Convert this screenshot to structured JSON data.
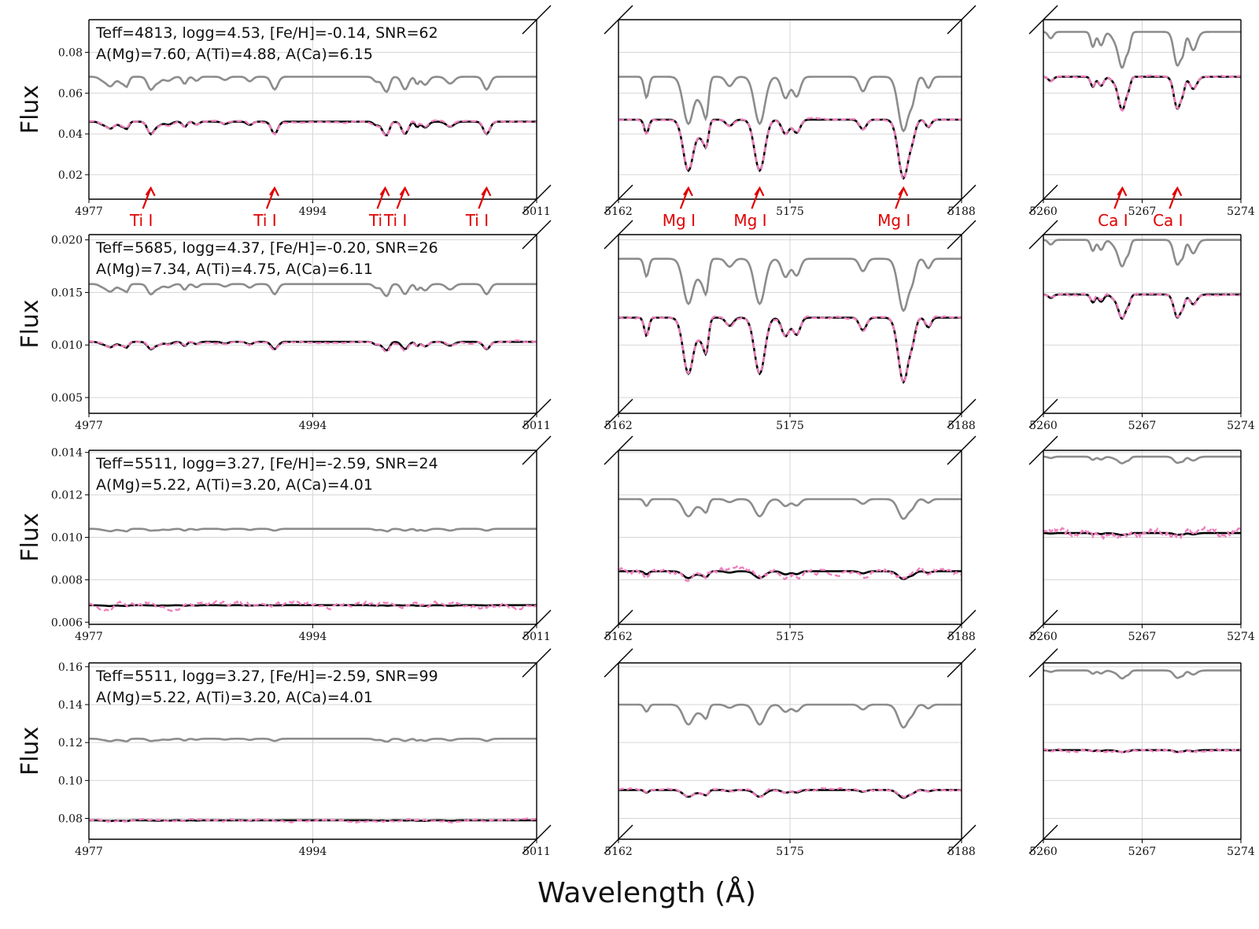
{
  "chart_data": {
    "type": "line",
    "xlabel": "Wavelength (Å)",
    "ylabel": "Flux",
    "colors": {
      "grey_line": "#8c8c8c",
      "black_line": "#000000",
      "pink_dashed": "#f07fbf",
      "annotation": "#e00000",
      "grid": "#d6d6d6"
    },
    "segments": [
      {
        "xlim": [
          4977,
          5011
        ],
        "ticks": [
          4977,
          4994,
          5011
        ]
      },
      {
        "xlim": [
          5162,
          5188
        ],
        "ticks": [
          5162,
          5175,
          5188
        ]
      },
      {
        "xlim": [
          5260,
          5274
        ],
        "ticks": [
          5260,
          5267,
          5274
        ]
      }
    ],
    "lines": {
      "Ti": [
        4981.7,
        4991.1,
        4999.5,
        5001.0,
        5007.2
      ],
      "Mg": [
        5167.3,
        5172.7,
        5183.6
      ],
      "Ca": [
        5265.6,
        5269.5
      ]
    },
    "panels": [
      {
        "annotation_line1": "Teff=4813, logg=4.53, [Fe/H]=-0.14, SNR=62",
        "annotation_line2": "A(Mg)=7.60, A(Ti)=4.88, A(Ca)=6.15",
        "ylim": [
          0.008,
          0.096
        ],
        "yticks": [
          0.02,
          0.04,
          0.06,
          0.08
        ],
        "ytick_labels": [
          "0.02",
          "0.04",
          "0.06",
          "0.08"
        ],
        "grey": {
          "cont": [
            0.068,
            0.068,
            0.09
          ],
          "depth": 0.018,
          "wide_scale": [
            0.55,
            1.6,
            1.3
          ],
          "lines": [
            0.9,
            0.8,
            0.7
          ]
        },
        "black": {
          "cont": [
            0.046,
            0.047,
            0.068
          ],
          "depth": 0.012,
          "wide_scale": [
            0.6,
            1.6,
            1.3
          ],
          "lines": [
            1.2,
            1.3,
            1.0
          ]
        },
        "pink_noise": 0.0005,
        "line_labels": [
          {
            "text": "Ti I",
            "seg": 0,
            "x": 4981.7,
            "tip_y": 0.0135
          },
          {
            "text": "Ti I",
            "seg": 0,
            "x": 4991.1,
            "tip_y": 0.0135
          },
          {
            "text": "Ti",
            "seg": 0,
            "x": 4999.5,
            "tip_y": 0.0135
          },
          {
            "text": "Ti I",
            "seg": 0,
            "x": 5001.0,
            "tip_y": 0.0135
          },
          {
            "text": "Ti I",
            "seg": 0,
            "x": 5007.2,
            "tip_y": 0.0135
          },
          {
            "text": "Mg I",
            "seg": 1,
            "x": 5167.3,
            "tip_y": 0.0135
          },
          {
            "text": "Mg I",
            "seg": 1,
            "x": 5172.7,
            "tip_y": 0.0135
          },
          {
            "text": "Mg I",
            "seg": 1,
            "x": 5183.6,
            "tip_y": 0.0135
          },
          {
            "text": "Ca I",
            "seg": 2,
            "x": 5265.6,
            "tip_y": 0.0135
          },
          {
            "text": "Ca I",
            "seg": 2,
            "x": 5269.5,
            "tip_y": 0.0135
          }
        ]
      },
      {
        "annotation_line1": "Teff=5685, logg=4.37, [Fe/H]=-0.20, SNR=26",
        "annotation_line2": "A(Mg)=7.34, A(Ti)=4.75, A(Ca)=6.11",
        "ylim": [
          0.0035,
          0.0205
        ],
        "yticks": [
          0.005,
          0.01,
          0.015,
          0.02
        ],
        "ytick_labels": [
          "0.005",
          "0.010",
          "0.015",
          "0.020"
        ],
        "grey": {
          "cont": [
            0.0158,
            0.0182,
            0.02
          ],
          "depth": 0.0028,
          "wide_scale": [
            0.55,
            1.7,
            1.2
          ],
          "lines": [
            0.9,
            0.9,
            0.7
          ]
        },
        "black": {
          "cont": [
            0.0103,
            0.0126,
            0.0148
          ],
          "depth": 0.0022,
          "wide_scale": [
            0.5,
            2.2,
            1.1
          ],
          "lines": [
            0.9,
            1.1,
            0.9
          ]
        },
        "pink_noise": 0.00012
      },
      {
        "annotation_line1": "Teff=5511, logg=3.27, [Fe/H]=-2.59, SNR=24",
        "annotation_line2": "A(Mg)=5.22, A(Ti)=3.20, A(Ca)=4.01",
        "ylim": [
          0.0059,
          0.0141
        ],
        "yticks": [
          0.006,
          0.008,
          0.01,
          0.012,
          0.014
        ],
        "ytick_labels": [
          "0.006",
          "0.008",
          "0.010",
          "0.012",
          "0.014"
        ],
        "grey": {
          "cont": [
            0.0104,
            0.0118,
            0.0138
          ],
          "depth": 0.0006,
          "wide_scale": [
            0.4,
            1.5,
            0.8
          ],
          "lines": [
            0.5,
            0.9,
            0.6
          ]
        },
        "black": {
          "cont": [
            0.0068,
            0.0084,
            0.0102
          ],
          "depth": 0.0004,
          "wide_scale": [
            0.2,
            1.0,
            0.4
          ],
          "lines": [
            0.2,
            0.8,
            0.5
          ]
        },
        "pink_noise": 0.00018
      },
      {
        "annotation_line1": "Teff=5511, logg=3.27, [Fe/H]=-2.59, SNR=99",
        "annotation_line2": "A(Mg)=5.22, A(Ti)=3.20, A(Ca)=4.01",
        "ylim": [
          0.069,
          0.162
        ],
        "yticks": [
          0.08,
          0.1,
          0.12,
          0.14,
          0.16
        ],
        "ytick_labels": [
          "0.08",
          "0.10",
          "0.12",
          "0.14",
          "0.16"
        ],
        "grey": {
          "cont": [
            0.122,
            0.14,
            0.158
          ],
          "depth": 0.007,
          "wide_scale": [
            0.4,
            1.5,
            0.8
          ],
          "lines": [
            0.6,
            1.0,
            0.7
          ]
        },
        "black": {
          "cont": [
            0.079,
            0.095,
            0.116
          ],
          "depth": 0.004,
          "wide_scale": [
            0.2,
            1.0,
            0.4
          ],
          "lines": [
            0.2,
            0.9,
            0.6
          ]
        },
        "pink_noise": 0.0008
      }
    ]
  }
}
